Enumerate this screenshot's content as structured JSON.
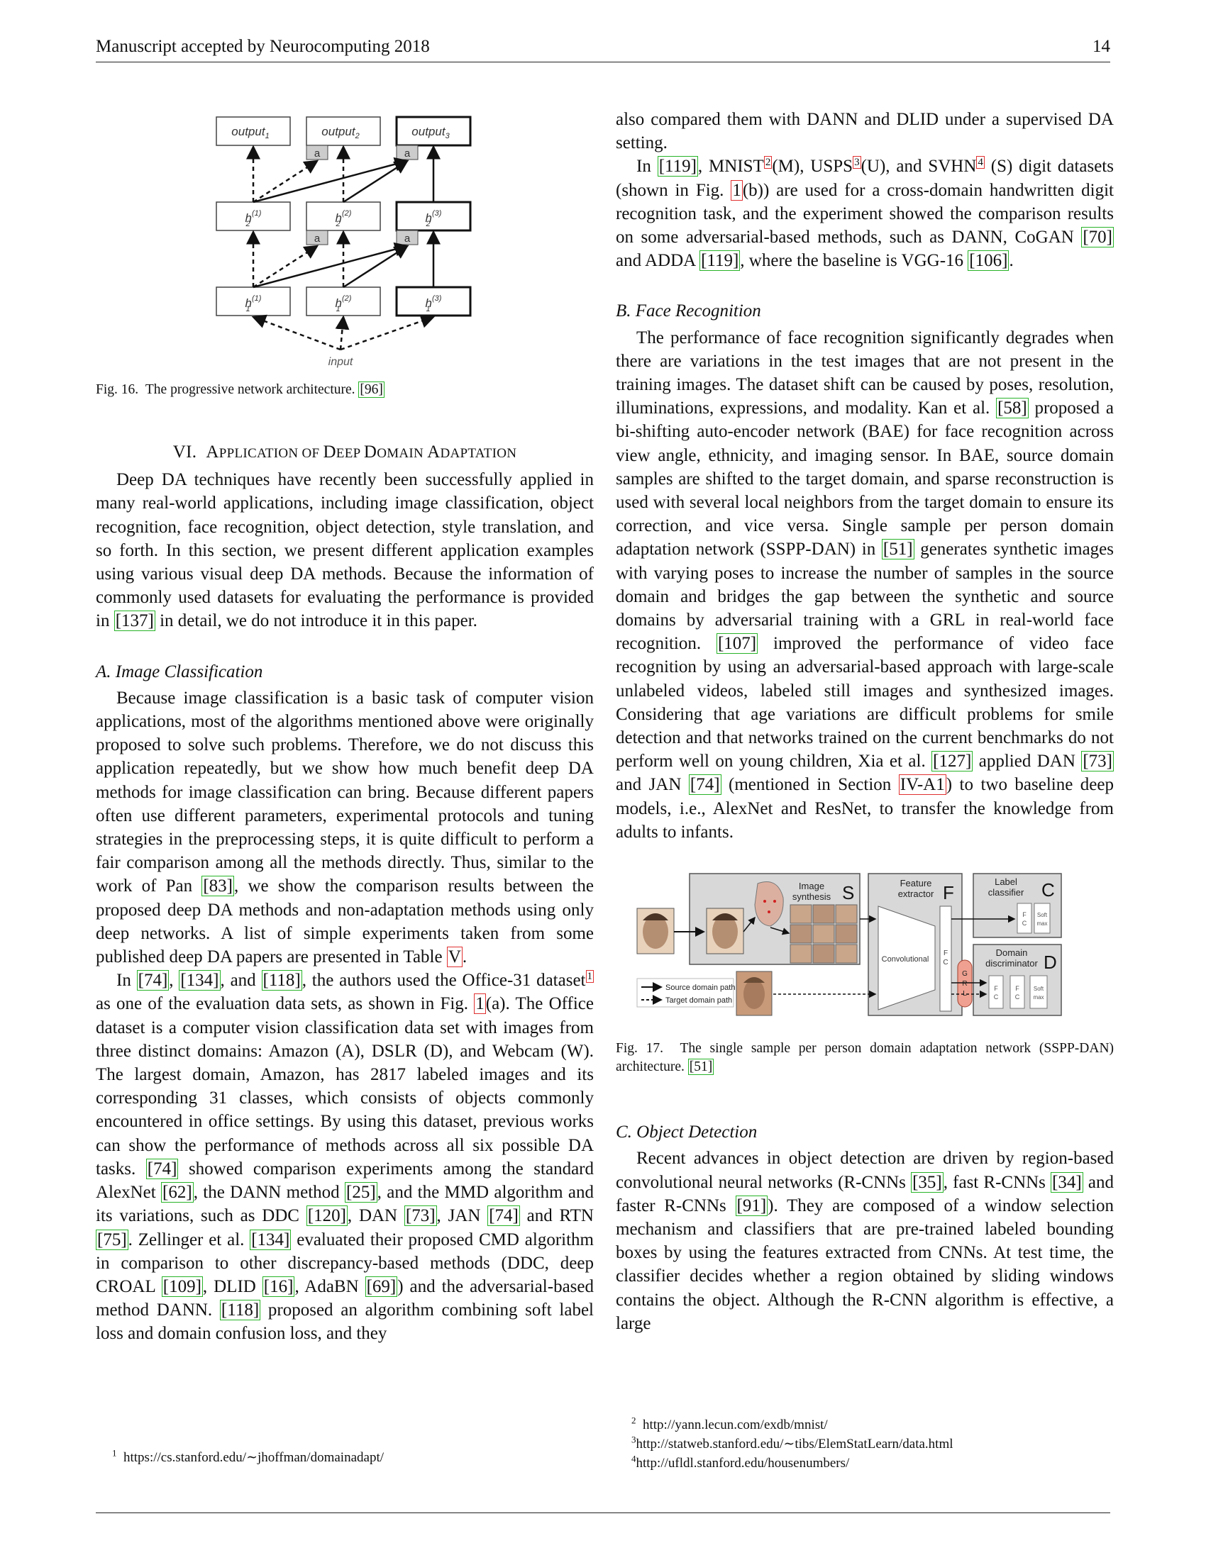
{
  "header": {
    "left": "Manuscript accepted by Neurocomputing 2018",
    "page_number": "14"
  },
  "figure16": {
    "output_labels": [
      "output",
      "output",
      "output"
    ],
    "output_subscripts": [
      "1",
      "2",
      "3"
    ],
    "adapter_label": "a",
    "h2_sup": [
      "(1)",
      "(2)",
      "(3)"
    ],
    "h_base": "h",
    "h2_sub": "2",
    "h1_sub": "1",
    "input_label": "input",
    "caption_prefix": "Fig. 16.",
    "caption_text": "The progressive network architecture.",
    "caption_cite": "[96]"
  },
  "section6": {
    "number": "VI.",
    "title_first": "A",
    "title_rest1": "PPLICATION OF ",
    "title_d1": "D",
    "title_rest2": "EEP ",
    "title_d2": "D",
    "title_rest3": "OMAIN ",
    "title_a": "A",
    "title_rest4": "DAPTATION"
  },
  "sec6_para": {
    "t1": "Deep DA techniques have recently been successfully applied in many real-world applications, including image classification, object recognition, face recognition, object detection, style translation, and so forth. In this section, we present different application examples using various visual deep DA methods. Because the information of commonly used datasets for evaluating the performance is provided in ",
    "c1": "[137]",
    "t2": " in detail, we do not introduce it in this paper."
  },
  "subA": {
    "title": "A.  Image Classification"
  },
  "subA_p1": {
    "t1": "Because image classification is a basic task of computer vision applications, most of the algorithms mentioned above were originally proposed to solve such problems. Therefore, we do not discuss this application repeatedly, but we show how much benefit deep DA methods for image classification can bring. Because different papers often use different parameters, experimental protocols and tuning strategies in the preprocessing steps, it is quite difficult to perform a fair comparison among all the methods directly. Thus, similar to the work of Pan ",
    "c1": "[83]",
    "t2": ", we show the comparison results between the proposed deep DA methods and non-adaptation methods using only deep networks. A list of simple experiments taken from some published deep DA papers are presented in Table ",
    "r1": "V",
    "t3": "."
  },
  "subA_p2": {
    "t1": "In ",
    "c1": "[74]",
    "t2": ", ",
    "c2": "[134]",
    "t3": ", and ",
    "c3": "[118]",
    "t4": ", the authors used the Office-31 dataset",
    "s1": "1",
    "t5": " as one of the evaluation data sets, as shown in Fig. ",
    "r1": "1",
    "t6": "(a). The Office dataset is a computer vision classification data set with images from three distinct domains: Amazon (A), DSLR (D), and Webcam (W). The largest domain, Amazon, has 2817 labeled images and its corresponding 31 classes, which consists of objects commonly encountered in office settings. By using this dataset, previous works can show the performance of methods across all six possible DA tasks. ",
    "c4": "[74]",
    "t7": " showed comparison experiments among the standard AlexNet ",
    "c5": "[62]",
    "t8": ", the DANN method ",
    "c6": "[25]",
    "t9": ", and the MMD algorithm and its variations, such as DDC ",
    "c7": "[120]",
    "t10": ", DAN ",
    "c8": "[73]",
    "t11": ", JAN ",
    "c9": "[74]",
    "t12": " and RTN ",
    "c10": "[75]",
    "t13": ". Zellinger et al. ",
    "c11": "[134]",
    "t14": " evaluated their proposed CMD algorithm in comparison to other discrepancy-based methods (DDC, deep CROAL ",
    "c12": "[109]",
    "t15": ", DLID ",
    "c13": "[16]",
    "t16": ", AdaBN ",
    "c14": "[69]",
    "t17": ") and the adversarial-based method DANN. ",
    "c15": "[118]",
    "t18": " proposed an algorithm combining soft label loss and domain confusion loss, and they"
  },
  "footnote_left": {
    "num": "1",
    "text": "https://cs.stanford.edu/∼jhoffman/domainadapt/"
  },
  "right_p1": {
    "t1": "also compared them with DANN and DLID under a supervised DA setting."
  },
  "right_p2": {
    "t1": "In ",
    "c1": "[119]",
    "t2": ", MNIST",
    "s1": "2",
    "t3": "(M), USPS",
    "s2": "3",
    "t4": "(U), and SVHN",
    "s3": "4",
    "t5": " (S) digit datasets (shown in Fig. ",
    "r1": "1",
    "t6": "(b)) are used for a cross-domain handwritten digit recognition task, and the experiment showed the comparison results on some adversarial-based methods, such as DANN, CoGAN ",
    "c2": "[70]",
    "t7": " and ADDA ",
    "c3": "[119]",
    "t8": ", where the baseline is VGG-16 ",
    "c4": "[106]",
    "t9": "."
  },
  "subB": {
    "title": "B.  Face Recognition"
  },
  "subB_p1": {
    "t1": "The performance of face recognition significantly degrades when there are variations in the test images that are not present in the training images. The dataset shift can be caused by poses, resolution, illuminations, expressions, and modality. Kan et al. ",
    "c1": "[58]",
    "t2": " proposed a bi-shifting auto-encoder network (BAE) for face recognition across view angle, ethnicity, and imaging sensor. In BAE, source domain samples are shifted to the target domain, and sparse reconstruction is used with several local neighbors from the target domain to ensure its correction, and vice versa. Single sample per person domain adaptation network (SSPP-DAN) in ",
    "c2": "[51]",
    "t3": " generates synthetic images with varying poses to increase the number of samples in the source domain and bridges the gap between the synthetic and source domains by adversarial training with a GRL in real-world face recognition. ",
    "c3": "[107]",
    "t4": " improved the performance of video face recognition by using an adversarial-based approach with large-scale unlabeled videos, labeled still images and synthesized images. Considering that age variations are difficult problems for smile detection and that networks trained on the current benchmarks do not perform well on young children, Xia et al. ",
    "c4": "[127]",
    "t5": " applied DAN ",
    "c5": "[73]",
    "t6": " and JAN ",
    "c6": "[74]",
    "t7": " (mentioned in Section ",
    "r1": "IV-A1",
    "t8": ") to two baseline deep models, i.e., AlexNet and ResNet, to transfer the knowledge from adults to infants."
  },
  "figure17": {
    "image_synthesis": [
      "Image",
      "synthesis"
    ],
    "s_letter": "S",
    "feature_extractor": [
      "Feature",
      "extractor"
    ],
    "f_letter": "F",
    "label_classifier": [
      "Label",
      "classifier"
    ],
    "c_letter": "C",
    "domain_discriminator": [
      "Domain",
      "discriminator"
    ],
    "d_letter": "D",
    "convolutional": "Convolutional",
    "fc": [
      "F",
      "C"
    ],
    "soft_max": [
      "Soft",
      "max"
    ],
    "grl": [
      "G",
      "R",
      "L"
    ],
    "legend_source": "Source domain path",
    "legend_target": "Target domain path",
    "caption_prefix": "Fig. 17.",
    "caption_text": "The single sample per person domain adaptation network (SSPP-DAN) architecture.",
    "caption_cite": "[51]"
  },
  "subC": {
    "title": "C.  Object Detection"
  },
  "subC_p1": {
    "t1": "Recent advances in object detection are driven by region-based convolutional neural networks (R-CNNs ",
    "c1": "[35]",
    "t2": ", fast R-CNNs ",
    "c2": "[34]",
    "t3": " and faster R-CNNs ",
    "c3": "[91]",
    "t4": "). They are composed of a window selection mechanism and classifiers that are pre-trained labeled bounding boxes by using the features extracted from CNNs. At test time, the classifier decides whether a region obtained by sliding windows contains the object. Although the R-CNN algorithm is effective, a large"
  },
  "footnotes_right": [
    {
      "num": "2",
      "text": "http://yann.lecun.com/exdb/mnist/"
    },
    {
      "num": "3",
      "text": "http://statweb.stanford.edu/∼tibs/ElemStatLearn/data.html"
    },
    {
      "num": "4",
      "text": "http://ufldl.stanford.edu/housenumbers/"
    }
  ]
}
